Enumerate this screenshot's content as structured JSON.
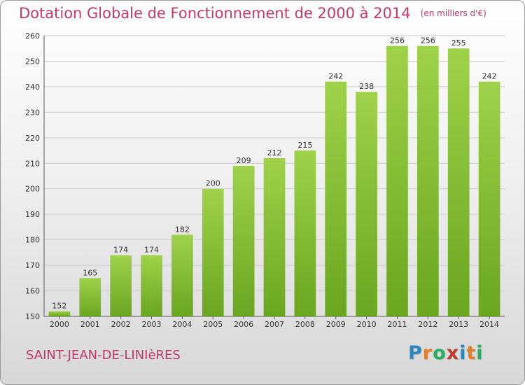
{
  "header": {
    "title": "Dotation Globale de Fonctionnement de 2000 à 2014",
    "unit": "(en milliers d'€)"
  },
  "footer": {
    "commune": "SAINT-JEAN-DE-LINIèRES",
    "logo_letters": [
      "P",
      "r",
      "o",
      "x",
      "i",
      "t",
      "i"
    ],
    "logo_colors": [
      "#2e86c1",
      "#e67e22",
      "#27ae60",
      "#c0392b",
      "#2e86c1",
      "#e67e22",
      "#27ae60"
    ]
  },
  "colors": {
    "bar_light": "#9fd24a",
    "bar_dark": "#6aa620",
    "grid": "#cccccc",
    "accent": "#c0396b"
  },
  "chart_data": {
    "type": "bar",
    "title": "Dotation Globale de Fonctionnement de 2000 à 2014",
    "subtitle": "(en milliers d'€)",
    "xlabel": "",
    "ylabel": "",
    "categories": [
      "2000",
      "2001",
      "2002",
      "2003",
      "2004",
      "2005",
      "2006",
      "2007",
      "2008",
      "2009",
      "2010",
      "2011",
      "2012",
      "2013",
      "2014"
    ],
    "values": [
      152,
      165,
      174,
      174,
      182,
      200,
      209,
      212,
      215,
      242,
      238,
      256,
      256,
      255,
      242
    ],
    "ylim": [
      150,
      260
    ],
    "yticks": [
      150,
      160,
      170,
      180,
      190,
      200,
      210,
      220,
      230,
      240,
      250,
      260
    ],
    "grid": true,
    "legend": "none"
  }
}
